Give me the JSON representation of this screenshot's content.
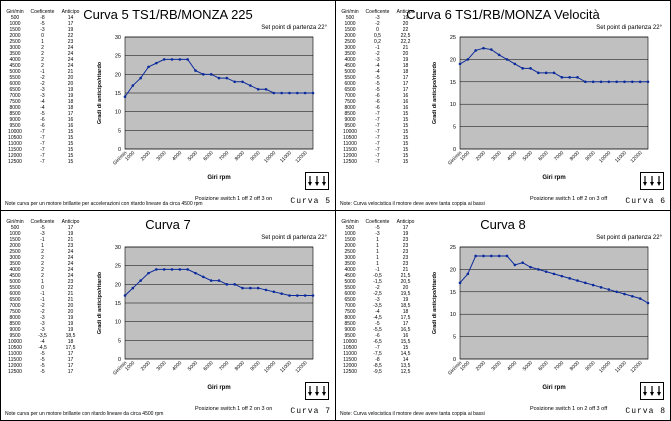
{
  "sheet": {
    "setpoint": "Set point di partenza 22°",
    "table_headers": [
      "Giri/min",
      "Coeficente",
      "Anticipo"
    ],
    "ylabel": "Gradi di anticipo/ritardo",
    "xlabel": "Giri rpm",
    "x_tick_first": "Giri/min",
    "colors": {
      "plot_bg": "#c0c0c0",
      "line": "#0b2a9b",
      "grid": "#000000"
    },
    "icons": [
      "switch-diagram-icon"
    ]
  },
  "panels": [
    {
      "title": "Curva 5 TS1/RB/MONZA 225",
      "setpoint_text": "Set point di partenza 22°",
      "note": "Note curva per un motore brillante per accelerazioni con ritardo lineare da circa 4500 rpm",
      "position": "Posizione switch 1 off 2 off 3 on",
      "curve_label": "Curva 5",
      "table": [
        [
          "500",
          "-8",
          "14"
        ],
        [
          "1000",
          "-5",
          "17"
        ],
        [
          "1500",
          "-3",
          "19"
        ],
        [
          "2000",
          "0",
          "22"
        ],
        [
          "2500",
          "1",
          "23"
        ],
        [
          "3000",
          "2",
          "24"
        ],
        [
          "3500",
          "2",
          "24"
        ],
        [
          "4000",
          "2",
          "24"
        ],
        [
          "4500",
          "2",
          "24"
        ],
        [
          "5000",
          "-1",
          "21"
        ],
        [
          "5500",
          "-2",
          "20"
        ],
        [
          "6000",
          "-2",
          "20"
        ],
        [
          "6500",
          "-3",
          "19"
        ],
        [
          "7000",
          "-3",
          "19"
        ],
        [
          "7500",
          "-4",
          "18"
        ],
        [
          "8000",
          "-4",
          "18"
        ],
        [
          "8500",
          "-5",
          "17"
        ],
        [
          "9000",
          "-6",
          "16"
        ],
        [
          "9500",
          "-6",
          "16"
        ],
        [
          "10000",
          "-7",
          "15"
        ],
        [
          "10500",
          "-7",
          "15"
        ],
        [
          "11000",
          "-7",
          "15"
        ],
        [
          "11500",
          "-7",
          "15"
        ],
        [
          "12000",
          "-7",
          "15"
        ],
        [
          "12500",
          "-7",
          "15"
        ]
      ]
    },
    {
      "title": "Curva 6 TS1/RB/MONZA Velocità",
      "setpoint_text": "Set point di partenza 22°",
      "note": "Note: Curva velocistica il motore deve avere tanta coppia ai bassi",
      "position": "Posizione switch 1 off 2 on 3 off",
      "curve_label": "Curva 6",
      "table": [
        [
          "500",
          "-3",
          "19"
        ],
        [
          "1000",
          "-2",
          "20"
        ],
        [
          "1500",
          "0",
          "22"
        ],
        [
          "2000",
          "0,5",
          "22,5"
        ],
        [
          "2500",
          "0,2",
          "22,2"
        ],
        [
          "3000",
          "-1",
          "21"
        ],
        [
          "3500",
          "-2",
          "20"
        ],
        [
          "4000",
          "-3",
          "19"
        ],
        [
          "4500",
          "-4",
          "18"
        ],
        [
          "5000",
          "-4",
          "18"
        ],
        [
          "5500",
          "-5",
          "17"
        ],
        [
          "6000",
          "-5",
          "17"
        ],
        [
          "6500",
          "-5",
          "17"
        ],
        [
          "7000",
          "-6",
          "16"
        ],
        [
          "7500",
          "-6",
          "16"
        ],
        [
          "8000",
          "-6",
          "16"
        ],
        [
          "8500",
          "-7",
          "15"
        ],
        [
          "9000",
          "-7",
          "15"
        ],
        [
          "9500",
          "-7",
          "15"
        ],
        [
          "10000",
          "-7",
          "15"
        ],
        [
          "10500",
          "-7",
          "15"
        ],
        [
          "11000",
          "-7",
          "15"
        ],
        [
          "11500",
          "-7",
          "15"
        ],
        [
          "12000",
          "-7",
          "15"
        ],
        [
          "12500",
          "-7",
          "15"
        ]
      ]
    },
    {
      "title": "Curva 7",
      "setpoint_text": "Set point di partenza 22°",
      "note": "Note curva per un motore brillante con ritardo lineare da circa 4500 rpm",
      "position": "Posizione switch 1 off 2 on 3 on",
      "curve_label": "Curva 7",
      "table": [
        [
          "500",
          "-5",
          "17"
        ],
        [
          "1000",
          "-3",
          "19"
        ],
        [
          "1500",
          "-1",
          "21"
        ],
        [
          "2000",
          "1",
          "23"
        ],
        [
          "2500",
          "2",
          "24"
        ],
        [
          "3000",
          "2",
          "24"
        ],
        [
          "3500",
          "2",
          "24"
        ],
        [
          "4000",
          "2",
          "24"
        ],
        [
          "4500",
          "2",
          "24"
        ],
        [
          "5000",
          "1",
          "23"
        ],
        [
          "5500",
          "0",
          "22"
        ],
        [
          "6000",
          "-1",
          "21"
        ],
        [
          "6500",
          "-1",
          "21"
        ],
        [
          "7000",
          "-2",
          "20"
        ],
        [
          "7500",
          "-2",
          "20"
        ],
        [
          "8000",
          "-3",
          "19"
        ],
        [
          "8500",
          "-3",
          "19"
        ],
        [
          "9000",
          "-3",
          "19"
        ],
        [
          "9500",
          "-3,5",
          "18,5"
        ],
        [
          "10000",
          "-4",
          "18"
        ],
        [
          "10500",
          "-4,5",
          "17,5"
        ],
        [
          "11000",
          "-5",
          "17"
        ],
        [
          "11500",
          "-5",
          "17"
        ],
        [
          "12000",
          "-5",
          "17"
        ],
        [
          "12500",
          "-5",
          "17"
        ]
      ]
    },
    {
      "title": "Curva 8",
      "setpoint_text": "Set point di partenza 22°",
      "note": "Note: Curva velocistica il motore deve avere tanta coppia ai bassi",
      "position": "Posizione switch 1 on 2 off 3 off",
      "curve_label": "Curva 8",
      "table": [
        [
          "500",
          "-5",
          "17"
        ],
        [
          "1000",
          "-3",
          "19"
        ],
        [
          "1500",
          "1",
          "23"
        ],
        [
          "2000",
          "1",
          "23"
        ],
        [
          "2500",
          "1",
          "23"
        ],
        [
          "3000",
          "1",
          "23"
        ],
        [
          "3500",
          "1",
          "23"
        ],
        [
          "4000",
          "-1",
          "21"
        ],
        [
          "4500",
          "-0,5",
          "21,5"
        ],
        [
          "5000",
          "-1,5",
          "20,5"
        ],
        [
          "5500",
          "-2",
          "20"
        ],
        [
          "6000",
          "-2,5",
          "19,5"
        ],
        [
          "6500",
          "-3",
          "19"
        ],
        [
          "7000",
          "-3,5",
          "18,5"
        ],
        [
          "7500",
          "-4",
          "18"
        ],
        [
          "8000",
          "-4,5",
          "17,5"
        ],
        [
          "8500",
          "-5",
          "17"
        ],
        [
          "9000",
          "-5,5",
          "16,5"
        ],
        [
          "9500",
          "-6",
          "16"
        ],
        [
          "10000",
          "-6,5",
          "15,5"
        ],
        [
          "10500",
          "-7",
          "15"
        ],
        [
          "11000",
          "-7,5",
          "14,5"
        ],
        [
          "11500",
          "-8",
          "14"
        ],
        [
          "12000",
          "-8,5",
          "13,5"
        ],
        [
          "12500",
          "-9,5",
          "12,5"
        ]
      ]
    }
  ],
  "chart_data": [
    {
      "type": "line",
      "title": "Curva 5 TS1/RB/MONZA 225",
      "xlabel": "Giri rpm",
      "ylabel": "Gradi di anticipo/ritardo",
      "x": [
        500,
        1000,
        1500,
        2000,
        2500,
        3000,
        3500,
        4000,
        4500,
        5000,
        5500,
        6000,
        6500,
        7000,
        7500,
        8000,
        8500,
        9000,
        9500,
        10000,
        10500,
        11000,
        11500,
        12000,
        12500
      ],
      "x_tick_labels": [
        "Giri/min",
        "1000",
        "2000",
        "3000",
        "4000",
        "5000",
        "6000",
        "7000",
        "8000",
        "9000",
        "10000",
        "11000",
        "12000"
      ],
      "y": [
        14,
        17,
        19,
        22,
        23,
        24,
        24,
        24,
        24,
        21,
        20,
        20,
        19,
        19,
        18,
        18,
        17,
        16,
        16,
        15,
        15,
        15,
        15,
        15,
        15
      ],
      "ylim": [
        0,
        30
      ],
      "yticks": [
        0,
        5,
        10,
        15,
        20,
        25,
        30
      ],
      "grid": true
    },
    {
      "type": "line",
      "title": "Curva 6 TS1/RB/MONZA Velocità",
      "xlabel": "Giri rpm",
      "ylabel": "Gradi di anticipo/ritardo",
      "x": [
        500,
        1000,
        1500,
        2000,
        2500,
        3000,
        3500,
        4000,
        4500,
        5000,
        5500,
        6000,
        6500,
        7000,
        7500,
        8000,
        8500,
        9000,
        9500,
        10000,
        10500,
        11000,
        11500,
        12000,
        12500
      ],
      "x_tick_labels": [
        "Giri/min",
        "1000",
        "2000",
        "3000",
        "4000",
        "5000",
        "6000",
        "7000",
        "8000",
        "9000",
        "10000",
        "11000",
        "12000"
      ],
      "y": [
        19,
        20,
        22,
        22.5,
        22.2,
        21,
        20,
        19,
        18,
        18,
        17,
        17,
        17,
        16,
        16,
        16,
        15,
        15,
        15,
        15,
        15,
        15,
        15,
        15,
        15
      ],
      "ylim": [
        0,
        25
      ],
      "yticks": [
        0,
        5,
        10,
        15,
        20,
        25
      ],
      "grid": true
    },
    {
      "type": "line",
      "title": "Curva 7",
      "xlabel": "Giri rpm",
      "ylabel": "Gradi di anticipo/ritardo",
      "x": [
        500,
        1000,
        1500,
        2000,
        2500,
        3000,
        3500,
        4000,
        4500,
        5000,
        5500,
        6000,
        6500,
        7000,
        7500,
        8000,
        8500,
        9000,
        9500,
        10000,
        10500,
        11000,
        11500,
        12000,
        12500
      ],
      "x_tick_labels": [
        "Giri/min",
        "1000",
        "2000",
        "3000",
        "4000",
        "5000",
        "6000",
        "7000",
        "8000",
        "9000",
        "10000",
        "11000",
        "12000"
      ],
      "y": [
        17,
        19,
        21,
        23,
        24,
        24,
        24,
        24,
        24,
        23,
        22,
        21,
        21,
        20,
        20,
        19,
        19,
        19,
        18.5,
        18,
        17.5,
        17,
        17,
        17,
        17
      ],
      "ylim": [
        0,
        30
      ],
      "yticks": [
        0,
        5,
        10,
        15,
        20,
        25,
        30
      ],
      "grid": true
    },
    {
      "type": "line",
      "title": "Curva 8",
      "xlabel": "Giri rpm",
      "ylabel": "Gradi di anticipo/ritardo",
      "x": [
        500,
        1000,
        1500,
        2000,
        2500,
        3000,
        3500,
        4000,
        4500,
        5000,
        5500,
        6000,
        6500,
        7000,
        7500,
        8000,
        8500,
        9000,
        9500,
        10000,
        10500,
        11000,
        11500,
        12000,
        12500
      ],
      "x_tick_labels": [
        "Giri/min",
        "1000",
        "2000",
        "3000",
        "4000",
        "5000",
        "6000",
        "7000",
        "8000",
        "9000",
        "10000",
        "11000",
        "12000"
      ],
      "y": [
        17,
        19,
        23,
        23,
        23,
        23,
        23,
        21,
        21.5,
        20.5,
        20,
        19.5,
        19,
        18.5,
        18,
        17.5,
        17,
        16.5,
        16,
        15.5,
        15,
        14.5,
        14,
        13.5,
        12.5
      ],
      "ylim": [
        0,
        25
      ],
      "yticks": [
        0,
        5,
        10,
        15,
        20,
        25
      ],
      "grid": true
    }
  ]
}
